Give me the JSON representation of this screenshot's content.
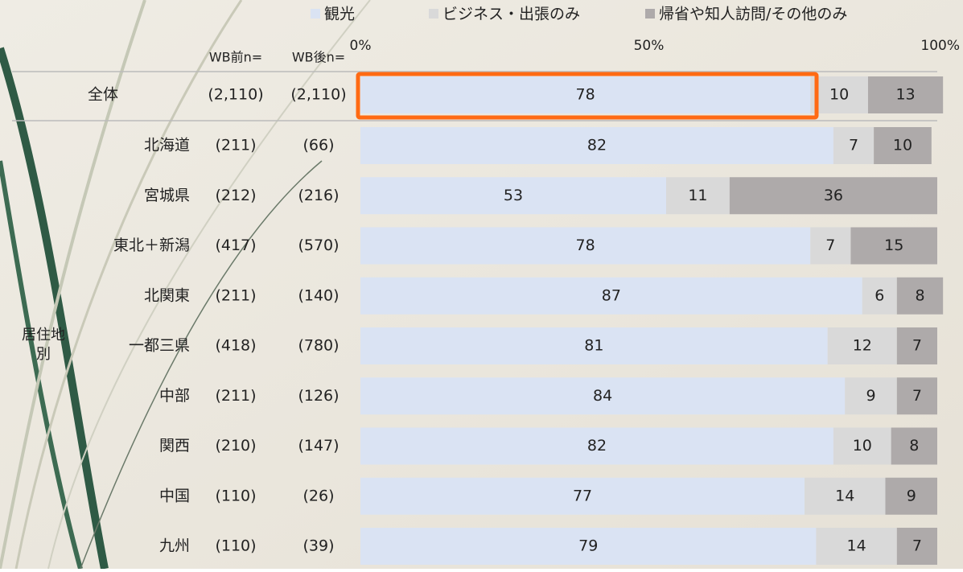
{
  "chart_data": {
    "type": "stacked-bar-horizontal",
    "series": [
      {
        "name": "観光",
        "color": "#dae3f3",
        "label_color": "#222222",
        "values": [
          78,
          82,
          53,
          78,
          87,
          81,
          84,
          82,
          77,
          79
        ]
      },
      {
        "name": "ビジネス・出張のみ",
        "color": "#d9d9d9",
        "label_color": "#222222",
        "values": [
          10,
          7,
          11,
          7,
          6,
          12,
          9,
          10,
          14,
          14
        ]
      },
      {
        "name": "帰省や知人訪問/その他のみ",
        "color": "#aeaaaa",
        "label_color": "#ffffff",
        "values": [
          13,
          10,
          36,
          15,
          8,
          7,
          7,
          8,
          9,
          7
        ]
      }
    ],
    "categories": [
      "全体",
      "北海道",
      "宮城県",
      "東北＋新潟",
      "北関東",
      "一都三県",
      "中部",
      "関西",
      "中国",
      "九州"
    ],
    "n_before_header": "WB前n=",
    "n_after_header": "WB後n=",
    "n_before": [
      "(2,110)",
      "(211)",
      "(212)",
      "(417)",
      "(211)",
      "(418)",
      "(211)",
      "(210)",
      "(110)",
      "(110)"
    ],
    "n_after": [
      "(2,110)",
      "(66)",
      "(216)",
      "(570)",
      "(140)",
      "(780)",
      "(126)",
      "(147)",
      "(26)",
      "(39)"
    ],
    "group_label": "居住地別",
    "xlim": [
      0,
      100
    ],
    "xticks": [
      {
        "value": 0,
        "label": "0%"
      },
      {
        "value": 50,
        "label": "50%"
      },
      {
        "value": 100,
        "label": "100%"
      }
    ]
  }
}
